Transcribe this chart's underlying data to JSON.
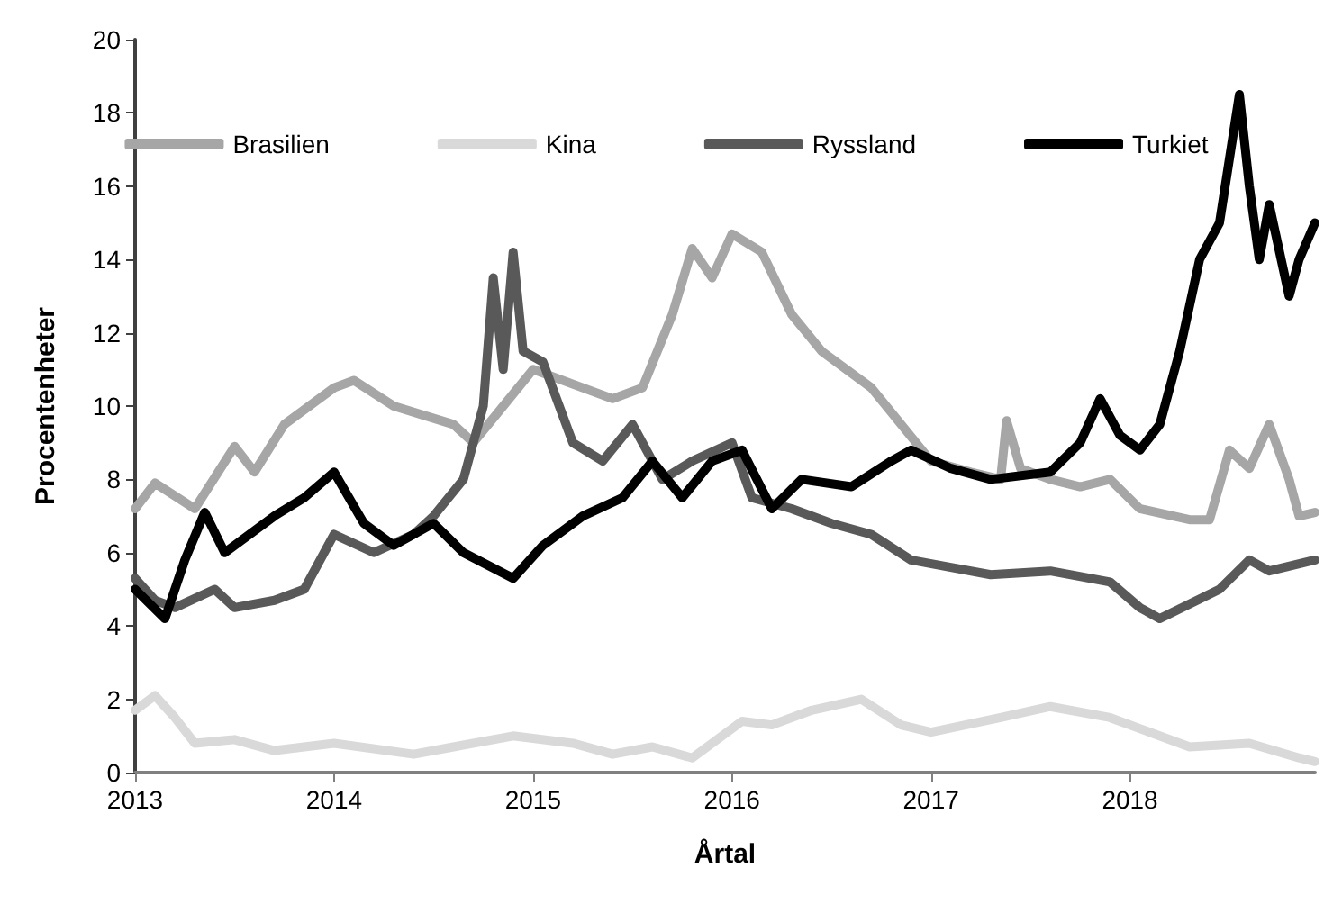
{
  "chart_data": {
    "type": "line",
    "xlabel": "Årtal",
    "ylabel": "Procentenheter",
    "xlim": [
      2013,
      2018.93
    ],
    "xticks": [
      2013,
      2014,
      2015,
      2016,
      2017,
      2018
    ],
    "ylim": [
      0,
      20
    ],
    "yticks": [
      0,
      2,
      4,
      6,
      8,
      10,
      12,
      14,
      16,
      18,
      20
    ],
    "grid": false,
    "legend": "top",
    "marker": "none",
    "line_style": "solid",
    "series": [
      {
        "name": "Brasilien",
        "color": "#a6a6a6",
        "x": [
          2013,
          2013.1,
          2013.3,
          2013.5,
          2013.6,
          2013.75,
          2014,
          2014.1,
          2014.3,
          2014.6,
          2014.7,
          2014.85,
          2015,
          2015.2,
          2015.4,
          2015.55,
          2015.7,
          2015.8,
          2015.9,
          2016,
          2016.15,
          2016.3,
          2016.45,
          2016.7,
          2016.85,
          2017,
          2017.2,
          2017.35,
          2017.38,
          2017.45,
          2017.6,
          2017.75,
          2017.9,
          2018.05,
          2018.3,
          2018.4,
          2018.5,
          2018.6,
          2018.7,
          2018.8,
          2018.85,
          2018.93
        ],
        "values": [
          7.2,
          7.9,
          7.2,
          8.9,
          8.2,
          9.5,
          10.5,
          10.7,
          10,
          9.5,
          9,
          10,
          11,
          10.6,
          10.2,
          10.5,
          12.5,
          14.3,
          13.5,
          14.7,
          14.2,
          12.5,
          11.5,
          10.5,
          9.5,
          8.5,
          8.2,
          8,
          9.6,
          8.3,
          8,
          7.8,
          8,
          7.2,
          6.9,
          6.9,
          8.8,
          8.3,
          9.5,
          8,
          7,
          7.1
        ]
      },
      {
        "name": "Kina",
        "color": "#d9d9d9",
        "x": [
          2013,
          2013.1,
          2013.2,
          2013.3,
          2013.5,
          2013.7,
          2014,
          2014.4,
          2014.6,
          2014.9,
          2015.2,
          2015.4,
          2015.6,
          2015.8,
          2016.05,
          2016.2,
          2016.4,
          2016.65,
          2016.85,
          2017,
          2017.35,
          2017.6,
          2017.9,
          2018.1,
          2018.3,
          2018.6,
          2018.85,
          2018.93
        ],
        "values": [
          1.7,
          2.1,
          1.5,
          0.8,
          0.9,
          0.6,
          0.8,
          0.5,
          0.7,
          1,
          0.8,
          0.5,
          0.7,
          0.4,
          1.4,
          1.3,
          1.7,
          2,
          1.3,
          1.1,
          1.5,
          1.8,
          1.5,
          1.1,
          0.7,
          0.8,
          0.4,
          0.3
        ]
      },
      {
        "name": "Ryssland",
        "color": "#595959",
        "x": [
          2013,
          2013.1,
          2013.2,
          2013.4,
          2013.5,
          2013.7,
          2013.85,
          2014,
          2014.2,
          2014.4,
          2014.5,
          2014.65,
          2014.75,
          2014.8,
          2014.85,
          2014.9,
          2014.95,
          2015.05,
          2015.2,
          2015.35,
          2015.5,
          2015.65,
          2015.8,
          2016,
          2016.1,
          2016.3,
          2016.5,
          2016.7,
          2016.9,
          2017.1,
          2017.3,
          2017.6,
          2017.9,
          2018.05,
          2018.15,
          2018.3,
          2018.45,
          2018.6,
          2018.7,
          2018.93
        ],
        "values": [
          5.3,
          4.7,
          4.5,
          5,
          4.5,
          4.7,
          5,
          6.5,
          6,
          6.5,
          7,
          8,
          10,
          13.5,
          11,
          14.2,
          11.5,
          11.2,
          9,
          8.5,
          9.5,
          8,
          8.5,
          9,
          7.5,
          7.2,
          6.8,
          6.5,
          5.8,
          5.6,
          5.4,
          5.5,
          5.2,
          4.5,
          4.2,
          4.6,
          5,
          5.8,
          5.5,
          5.8
        ]
      },
      {
        "name": "Turkiet",
        "color": "#000000",
        "x": [
          2013,
          2013.15,
          2013.25,
          2013.35,
          2013.45,
          2013.7,
          2013.85,
          2014,
          2014.15,
          2014.3,
          2014.5,
          2014.65,
          2014.9,
          2015.05,
          2015.25,
          2015.45,
          2015.6,
          2015.75,
          2015.9,
          2016.05,
          2016.2,
          2016.35,
          2016.6,
          2016.8,
          2016.9,
          2017.1,
          2017.3,
          2017.6,
          2017.75,
          2017.85,
          2017.95,
          2018.05,
          2018.15,
          2018.25,
          2018.35,
          2018.45,
          2018.55,
          2018.6,
          2018.65,
          2018.7,
          2018.8,
          2018.85,
          2018.93
        ],
        "values": [
          5,
          4.2,
          5.8,
          7.1,
          6,
          7,
          7.5,
          8.2,
          6.8,
          6.2,
          6.8,
          6,
          5.3,
          6.2,
          7,
          7.5,
          8.5,
          7.5,
          8.5,
          8.8,
          7.2,
          8,
          7.8,
          8.5,
          8.8,
          8.3,
          8,
          8.2,
          9,
          10.2,
          9.2,
          8.8,
          9.5,
          11.5,
          14,
          15,
          18.5,
          16,
          14,
          15.5,
          13,
          14,
          15
        ]
      }
    ]
  }
}
